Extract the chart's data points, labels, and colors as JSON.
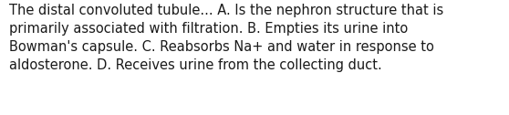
{
  "line1": "The distal convoluted tubule... A. Is the nephron structure that is",
  "line2": "primarily associated with filtration. B. Empties its urine into",
  "line3": "Bowman's capsule. C. Reabsorbs Na+ and water in response to",
  "line4": "aldosterone. D. Receives urine from the collecting duct.",
  "background_color": "#ffffff",
  "text_color": "#1a1a1a",
  "font_size": 10.5,
  "fig_width": 5.58,
  "fig_height": 1.26,
  "dpi": 100
}
